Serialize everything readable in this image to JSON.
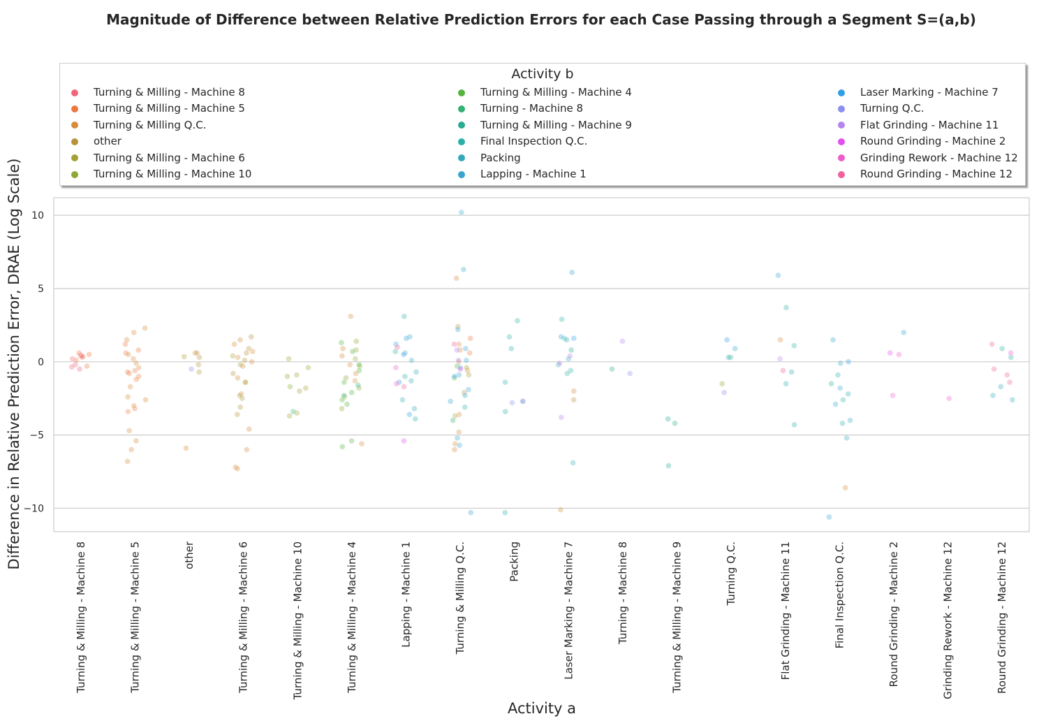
{
  "chart_data": {
    "type": "scatter",
    "title": "Magnitude of Difference between Relative Prediction Errors for each Case Passing through a Segment S=(a,b)",
    "xlabel": "Activity a",
    "ylabel": "Difference in Relative Prediction Error, DRAE (Log Scale)",
    "ylim": [
      -11.6,
      11.2
    ],
    "yticks": [
      10,
      5,
      0,
      -5,
      -10
    ],
    "ytick_labels": [
      "10",
      "5",
      "0",
      "−5",
      "−10"
    ],
    "grid": true,
    "legend_position": "top",
    "legend_title": "Activity b",
    "categories": [
      "Turning & Milling - Machine 8",
      "Turning & Milling - Machine 5",
      "other",
      "Turning & Milling - Machine 6",
      "Turning & Milling - Machine 10",
      "Turning & Milling - Machine 4",
      "Lapping - Machine 1",
      "Turning & Milling Q.C.",
      "Packing",
      "Laser Marking - Machine 7",
      "Turning - Machine 8",
      "Turning & Milling - Machine 9",
      "Turning Q.C.",
      "Flat Grinding - Machine 11",
      "Final Inspection Q.C.",
      "Round Grinding - Machine 2",
      "Grinding Rework - Machine 12",
      "Round Grinding - Machine 12"
    ],
    "series": [
      {
        "name": "Turning & Milling - Machine 8",
        "color": "#f0647c",
        "points": [
          [
            0,
            0.4
          ],
          [
            0,
            0.3
          ],
          [
            0,
            0.2
          ],
          [
            0,
            -0.2
          ],
          [
            0,
            -0.5
          ],
          [
            0,
            0.45
          ],
          [
            0,
            -0.35
          ]
        ]
      },
      {
        "name": "Turning & Milling - Machine 5",
        "color": "#ee7840",
        "points": [
          [
            0,
            0.5
          ],
          [
            0,
            0.35
          ],
          [
            0,
            0.6
          ],
          [
            0,
            0.1
          ],
          [
            0,
            -0.3
          ],
          [
            1,
            0.8
          ],
          [
            1,
            0.6
          ],
          [
            1,
            -0.6
          ],
          [
            1,
            -0.8
          ],
          [
            1,
            -1.0
          ],
          [
            1,
            -0.7
          ],
          [
            1,
            -1.2
          ],
          [
            1,
            -3.2
          ],
          [
            1,
            -3.4
          ],
          [
            1,
            1.2
          ],
          [
            7,
            0.6
          ],
          [
            7,
            1.6
          ]
        ]
      },
      {
        "name": "Turning & Milling Q.C.",
        "color": "#d88b3a",
        "points": [
          [
            1,
            1.5
          ],
          [
            1,
            2.0
          ],
          [
            1,
            2.3
          ],
          [
            1,
            0.5
          ],
          [
            1,
            0.2
          ],
          [
            1,
            -0.1
          ],
          [
            1,
            -0.4
          ],
          [
            1,
            -1.7
          ],
          [
            1,
            -2.4
          ],
          [
            1,
            -2.6
          ],
          [
            1,
            -3.0
          ],
          [
            1,
            -4.7
          ],
          [
            1,
            -5.4
          ],
          [
            1,
            -6.0
          ],
          [
            1,
            -6.8
          ],
          [
            2,
            0.6
          ],
          [
            2,
            -5.9
          ],
          [
            3,
            1.5
          ],
          [
            3,
            1.2
          ],
          [
            3,
            0.7
          ],
          [
            3,
            0.3
          ],
          [
            3,
            0.0
          ],
          [
            3,
            -0.3
          ],
          [
            3,
            -1.1
          ],
          [
            3,
            -1.4
          ],
          [
            3,
            -2.2
          ],
          [
            3,
            -4.6
          ],
          [
            3,
            -6.0
          ],
          [
            3,
            -7.2
          ],
          [
            3,
            -7.3
          ],
          [
            5,
            3.1
          ],
          [
            5,
            0.9
          ],
          [
            5,
            0.4
          ],
          [
            5,
            -0.2
          ],
          [
            5,
            -0.8
          ],
          [
            5,
            -1.3
          ],
          [
            5,
            -5.6
          ],
          [
            7,
            5.7
          ],
          [
            7,
            1.2
          ],
          [
            7,
            0.8
          ],
          [
            7,
            0.0
          ],
          [
            7,
            -0.6
          ],
          [
            7,
            -3.6
          ],
          [
            7,
            -4.8
          ],
          [
            7,
            -5.6
          ],
          [
            7,
            -6.0
          ],
          [
            9,
            -2.0
          ],
          [
            9,
            -10.1
          ],
          [
            13,
            1.5
          ],
          [
            14,
            -8.6
          ]
        ]
      },
      {
        "name": "other",
        "color": "#b8923a",
        "points": [
          [
            2,
            0.6
          ],
          [
            2,
            0.3
          ],
          [
            2,
            -0.2
          ],
          [
            3,
            1.7
          ],
          [
            3,
            0.9
          ],
          [
            3,
            0.6
          ],
          [
            3,
            0.1
          ],
          [
            3,
            -0.8
          ],
          [
            3,
            -2.3
          ],
          [
            3,
            -3.1
          ],
          [
            3,
            -3.6
          ],
          [
            7,
            2.4
          ],
          [
            7,
            -2.1
          ],
          [
            9,
            -2.6
          ]
        ]
      },
      {
        "name": "Turning & Milling - Machine 6",
        "color": "#a4a036",
        "points": [
          [
            2,
            0.35
          ],
          [
            2,
            -0.7
          ],
          [
            3,
            0.4
          ],
          [
            3,
            -0.2
          ],
          [
            3,
            -1.4
          ],
          [
            3,
            -2.5
          ],
          [
            4,
            0.2
          ],
          [
            4,
            -0.4
          ],
          [
            4,
            -0.9
          ],
          [
            4,
            -1.8
          ],
          [
            4,
            -2.0
          ],
          [
            4,
            -3.5
          ],
          [
            4,
            -3.7
          ],
          [
            7,
            -0.4
          ],
          [
            7,
            -0.9
          ],
          [
            7,
            -3.7
          ]
        ]
      },
      {
        "name": "Turning & Milling - Machine 10",
        "color": "#8fa832",
        "points": [
          [
            4,
            -1.0
          ],
          [
            4,
            -1.7
          ],
          [
            5,
            1.4
          ],
          [
            5,
            0.8
          ],
          [
            5,
            0.2
          ],
          [
            5,
            -0.3
          ],
          [
            5,
            -1.1
          ],
          [
            5,
            -1.8
          ],
          [
            5,
            -2.4
          ],
          [
            5,
            -3.2
          ],
          [
            12,
            -1.5
          ]
        ]
      },
      {
        "name": "Turning & Milling - Machine 4",
        "color": "#55b43c",
        "points": [
          [
            5,
            1.3
          ],
          [
            5,
            0.7
          ],
          [
            5,
            -0.2
          ],
          [
            5,
            -0.6
          ],
          [
            5,
            -1.4
          ],
          [
            5,
            -2.1
          ],
          [
            5,
            -2.6
          ],
          [
            5,
            -2.9
          ],
          [
            5,
            -5.4
          ],
          [
            5,
            -5.8
          ],
          [
            7,
            -0.3
          ],
          [
            7,
            -1.1
          ]
        ]
      },
      {
        "name": "Turning - Machine 8",
        "color": "#33b074",
        "points": [
          [
            4,
            -3.4
          ],
          [
            5,
            -1.6
          ],
          [
            5,
            -2.3
          ],
          [
            7,
            -4.0
          ],
          [
            10,
            -0.5
          ]
        ]
      },
      {
        "name": "Turning & Milling - Machine 9",
        "color": "#2aab92",
        "points": [
          [
            9,
            0.8
          ],
          [
            11,
            -3.9
          ],
          [
            11,
            -4.2
          ],
          [
            11,
            -7.1
          ],
          [
            12,
            0.3
          ]
        ]
      },
      {
        "name": "Final Inspection Q.C.",
        "color": "#2bb0a8",
        "points": [
          [
            6,
            3.1
          ],
          [
            6,
            0.7
          ],
          [
            6,
            0.1
          ],
          [
            6,
            -1.0
          ],
          [
            6,
            -1.3
          ],
          [
            6,
            -2.6
          ],
          [
            6,
            -3.9
          ],
          [
            7,
            -3.1
          ],
          [
            8,
            2.8
          ],
          [
            8,
            1.7
          ],
          [
            8,
            0.9
          ],
          [
            8,
            -1.4
          ],
          [
            8,
            -2.7
          ],
          [
            8,
            -3.4
          ],
          [
            8,
            -10.3
          ],
          [
            9,
            2.9
          ],
          [
            9,
            1.6
          ],
          [
            9,
            -0.2
          ],
          [
            9,
            -0.6
          ],
          [
            9,
            -0.8
          ],
          [
            12,
            0.3
          ],
          [
            13,
            3.7
          ],
          [
            13,
            1.1
          ],
          [
            13,
            -1.5
          ],
          [
            14,
            -0.9
          ],
          [
            14,
            -1.5
          ],
          [
            14,
            -2.2
          ],
          [
            14,
            -2.6
          ],
          [
            17,
            0.9
          ],
          [
            17,
            0.3
          ]
        ]
      },
      {
        "name": "Packing",
        "color": "#35a8bc",
        "points": [
          [
            6,
            1.7
          ],
          [
            6,
            0.6
          ],
          [
            6,
            -0.7
          ],
          [
            6,
            -3.2
          ],
          [
            9,
            1.5
          ],
          [
            9,
            0.2
          ],
          [
            9,
            -6.9
          ],
          [
            13,
            -0.7
          ],
          [
            13,
            -4.3
          ],
          [
            14,
            -0.1
          ],
          [
            14,
            -4.0
          ],
          [
            14,
            -4.2
          ],
          [
            14,
            -5.2
          ],
          [
            17,
            -1.7
          ],
          [
            17,
            -2.3
          ],
          [
            17,
            -2.6
          ]
        ]
      },
      {
        "name": "Lapping - Machine 1",
        "color": "#38a5cf",
        "points": [
          [
            7,
            10.2
          ],
          [
            7,
            6.3
          ],
          [
            7,
            2.2
          ],
          [
            7,
            0.9
          ],
          [
            7,
            0.1
          ],
          [
            7,
            -0.4
          ],
          [
            7,
            -0.9
          ],
          [
            7,
            -1.9
          ],
          [
            7,
            -2.3
          ],
          [
            7,
            -2.7
          ],
          [
            7,
            -5.2
          ],
          [
            7,
            -5.7
          ],
          [
            7,
            -10.3
          ],
          [
            9,
            6.1
          ],
          [
            9,
            1.7
          ],
          [
            12,
            0.9
          ],
          [
            13,
            5.9
          ],
          [
            14,
            1.5
          ],
          [
            14,
            -1.8
          ],
          [
            14,
            -2.9
          ],
          [
            14,
            -10.6
          ],
          [
            15,
            2.0
          ]
        ]
      },
      {
        "name": "Laser Marking - Machine 7",
        "color": "#2e9fe6",
        "points": [
          [
            6,
            1.6
          ],
          [
            6,
            1.2
          ],
          [
            6,
            0.5
          ],
          [
            6,
            -1.4
          ],
          [
            6,
            -3.6
          ],
          [
            7,
            -1.0
          ],
          [
            9,
            1.6
          ],
          [
            12,
            1.5
          ],
          [
            14,
            0.0
          ]
        ]
      },
      {
        "name": "Turning Q.C.",
        "color": "#8a8ff0",
        "points": [
          [
            2,
            -0.5
          ],
          [
            8,
            -2.8
          ],
          [
            10,
            -0.8
          ],
          [
            12,
            -2.1
          ]
        ]
      },
      {
        "name": "Flat Grinding - Machine 11",
        "color": "#b584f0",
        "points": [
          [
            7,
            0.8
          ],
          [
            7,
            0.1
          ],
          [
            8,
            -2.7
          ],
          [
            9,
            0.4
          ],
          [
            9,
            -0.1
          ],
          [
            9,
            -3.8
          ],
          [
            10,
            1.4
          ],
          [
            13,
            0.2
          ]
        ]
      },
      {
        "name": "Round Grinding - Machine 2",
        "color": "#e04ff0",
        "points": [
          [
            6,
            -5.4
          ],
          [
            7,
            -0.5
          ],
          [
            15,
            0.6
          ]
        ]
      },
      {
        "name": "Grinding Rework - Machine 12",
        "color": "#ee5cc8",
        "points": [
          [
            6,
            -0.4
          ],
          [
            6,
            -1.5
          ],
          [
            15,
            0.5
          ],
          [
            15,
            -2.3
          ],
          [
            16,
            -2.5
          ],
          [
            17,
            0.6
          ]
        ]
      },
      {
        "name": "Round Grinding - Machine 12",
        "color": "#f0609c",
        "points": [
          [
            6,
            1.0
          ],
          [
            6,
            -1.7
          ],
          [
            7,
            1.2
          ],
          [
            13,
            -0.6
          ],
          [
            17,
            1.2
          ],
          [
            17,
            -0.5
          ],
          [
            17,
            -0.9
          ],
          [
            17,
            -1.4
          ]
        ]
      }
    ]
  }
}
